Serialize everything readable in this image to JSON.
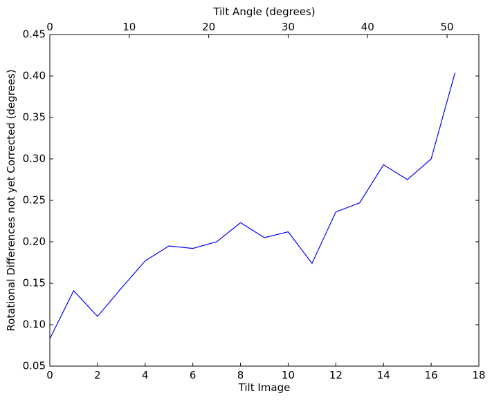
{
  "chart_data": {
    "type": "line",
    "xlabel": "Tilt Image",
    "ylabel": "Rotational Differences not yet Corrected (degrees)",
    "x2label": "Tilt Angle (degrees)",
    "xlim": [
      0,
      18
    ],
    "ylim": [
      0.05,
      0.45
    ],
    "x2lim": [
      0,
      54
    ],
    "xticks": [
      0,
      2,
      4,
      6,
      8,
      10,
      12,
      14,
      16,
      18
    ],
    "xtick_labels": [
      "0",
      "2",
      "4",
      "6",
      "8",
      "10",
      "12",
      "14",
      "16",
      "18"
    ],
    "yticks": [
      0.05,
      0.1,
      0.15,
      0.2,
      0.25,
      0.3,
      0.35,
      0.4,
      0.45
    ],
    "ytick_labels": [
      "0.05",
      "0.10",
      "0.15",
      "0.20",
      "0.25",
      "0.30",
      "0.35",
      "0.40",
      "0.45"
    ],
    "x2ticks": [
      0,
      10,
      20,
      30,
      40,
      50
    ],
    "x2tick_labels": [
      "0",
      "10",
      "20",
      "30",
      "40",
      "50"
    ],
    "grid": false,
    "colors": {
      "line": "#0000ff",
      "axes": "#000000",
      "background": "#ffffff"
    },
    "series": [
      {
        "x": [
          0,
          1,
          2,
          3,
          4,
          5,
          6,
          7,
          8,
          9,
          10,
          11,
          12,
          13,
          14,
          15,
          16,
          17
        ],
        "y": [
          0.083,
          0.141,
          0.11,
          0.144,
          0.177,
          0.195,
          0.192,
          0.2,
          0.223,
          0.205,
          0.212,
          0.174,
          0.236,
          0.247,
          0.293,
          0.275,
          0.3,
          0.404
        ]
      }
    ]
  }
}
